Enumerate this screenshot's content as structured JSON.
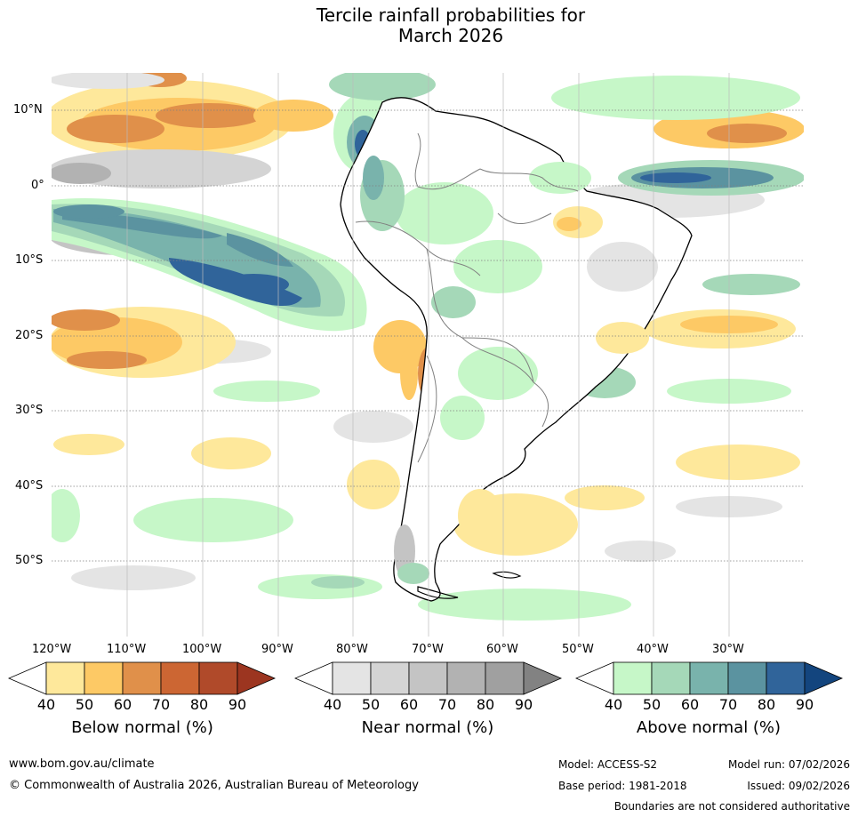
{
  "title": {
    "line1": "Tercile rainfall probabilities for",
    "line2": "March 2026"
  },
  "map": {
    "lat_labels": [
      "10°N",
      "0°",
      "10°S",
      "20°S",
      "30°S",
      "40°S",
      "50°S"
    ],
    "lon_labels": [
      "120°W",
      "110°W",
      "100°W",
      "90°W",
      "80°W",
      "70°W",
      "60°W",
      "50°W",
      "40°W",
      "30°W"
    ],
    "region": "South America",
    "colors": {
      "ocean_base": "#ffffff",
      "land_border": "#000000",
      "country_border": "#808080"
    }
  },
  "colorbars": [
    {
      "title": "Below normal (%)",
      "ticks": [
        "40",
        "50",
        "60",
        "70",
        "80",
        "90"
      ],
      "colors": [
        "#ffffff",
        "#fee89b",
        "#fdc965",
        "#e0904a",
        "#cc6633",
        "#b04a2a",
        "#9c3520"
      ]
    },
    {
      "title": "Near normal (%)",
      "ticks": [
        "40",
        "50",
        "60",
        "70",
        "80",
        "90"
      ],
      "colors": [
        "#ffffff",
        "#e4e4e4",
        "#d4d4d4",
        "#c4c4c4",
        "#b2b2b2",
        "#a0a0a0",
        "#828282"
      ]
    },
    {
      "title": "Above normal (%)",
      "ticks": [
        "40",
        "50",
        "60",
        "70",
        "80",
        "90"
      ],
      "colors": [
        "#ffffff",
        "#c6f7c8",
        "#a5d8b8",
        "#79b3ac",
        "#5b93a0",
        "#30649a",
        "#13457e"
      ]
    }
  ],
  "footer": {
    "url": "www.bom.gov.au/climate",
    "copyright": "© Commonwealth of Australia 2026, Australian Bureau of Meteorology",
    "model": "Model: ACCESS-S2",
    "base_period": "Base period: 1981-2018",
    "model_run": "Model run: 07/02/2026",
    "issued": "Issued: 09/02/2026",
    "disclaimer": "Boundaries are not considered authoritative"
  }
}
